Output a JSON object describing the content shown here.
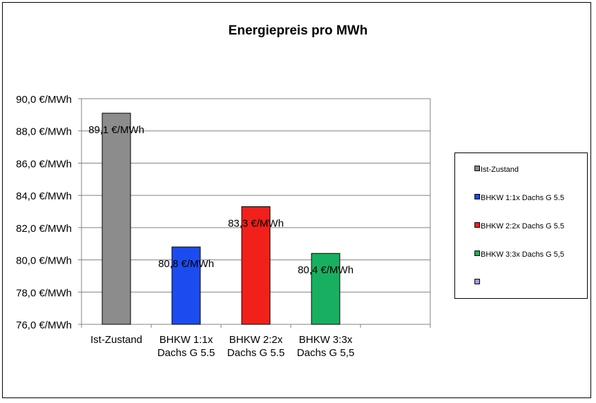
{
  "chart_data": {
    "type": "bar",
    "title": "Energiepreis pro MWh",
    "categories": [
      "Ist-Zustand",
      "BHKW 1:1x Dachs G 5.5",
      "BHKW 2:2x Dachs G 5.5",
      "BHKW 3:3x Dachs G 5,5"
    ],
    "category_labels": [
      [
        "Ist-Zustand"
      ],
      [
        "BHKW 1:1x",
        "Dachs G 5.5"
      ],
      [
        "BHKW 2:2x",
        "Dachs G 5.5"
      ],
      [
        "BHKW 3:3x",
        "Dachs G 5,5"
      ]
    ],
    "values": [
      89.1,
      80.8,
      83.3,
      80.4
    ],
    "data_labels": [
      "89,1 €/MWh",
      "80,8 €/MWh",
      "83,3 €/MWh",
      "80,4 €/MWh"
    ],
    "colors": [
      "#8c8c8c",
      "#1c4cf0",
      "#f2201a",
      "#18b060"
    ],
    "ylim": [
      76,
      90
    ],
    "yticks": [
      76,
      78,
      80,
      82,
      84,
      86,
      88,
      90
    ],
    "ytick_labels": [
      "76,0 €/MWh",
      "78,0 €/MWh",
      "80,0 €/MWh",
      "82,0 €/MWh",
      "84,0 €/MWh",
      "86,0 €/MWh",
      "88,0 €/MWh",
      "90,0 €/MWh"
    ],
    "xlabel": "",
    "ylabel": "",
    "grid": true,
    "legend_position": "right",
    "legend": [
      {
        "label": "Ist-Zustand",
        "color": "#8c8c8c"
      },
      {
        "label": "BHKW 1:1x Dachs G 5.5",
        "color": "#1c4cf0"
      },
      {
        "label": "BHKW 2:2x Dachs G 5.5",
        "color": "#f2201a"
      },
      {
        "label": "BHKW 3:3x  Dachs G 5,5",
        "color": "#18b060"
      },
      {
        "label": "",
        "color": "#9a9cf0"
      }
    ]
  }
}
